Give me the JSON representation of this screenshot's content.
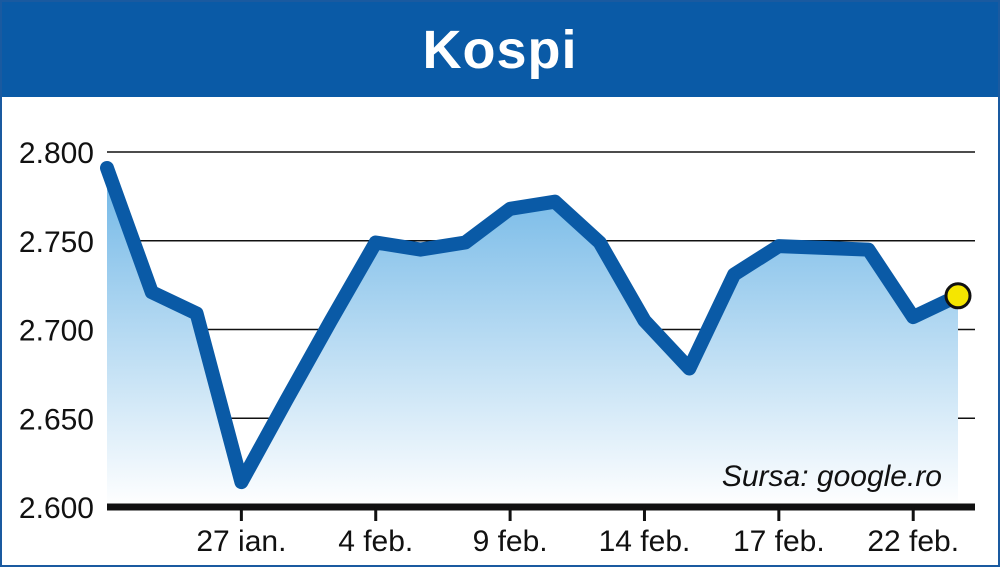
{
  "chart_data": {
    "type": "area",
    "title": "Kospi",
    "source": "Sursa: google.ro",
    "ylim": [
      2600,
      2800
    ],
    "y_ticks": [
      2600,
      2650,
      2700,
      2750,
      2800
    ],
    "y_tick_labels": [
      "2.600",
      "2.650",
      "2.700",
      "2.750",
      "2.800"
    ],
    "x_tick_labels": [
      "27 ian.",
      "4 feb.",
      "9 feb.",
      "14 feb.",
      "17 feb.",
      "22 feb."
    ],
    "x_tick_positions": [
      3,
      6,
      9,
      12,
      15,
      18
    ],
    "grid": true,
    "values": [
      2791,
      2721,
      2709,
      2614,
      2660,
      2705,
      2749,
      2745,
      2749,
      2768,
      2772,
      2749,
      2705,
      2678,
      2731,
      2747,
      2746,
      2745,
      2707,
      2719
    ],
    "colors": {
      "line": "#0a5aa6",
      "fill_top": "#6fb6e6",
      "fill_bottom": "#ffffff",
      "last_marker": "#f5e600",
      "header": "#0a5aa6"
    }
  }
}
